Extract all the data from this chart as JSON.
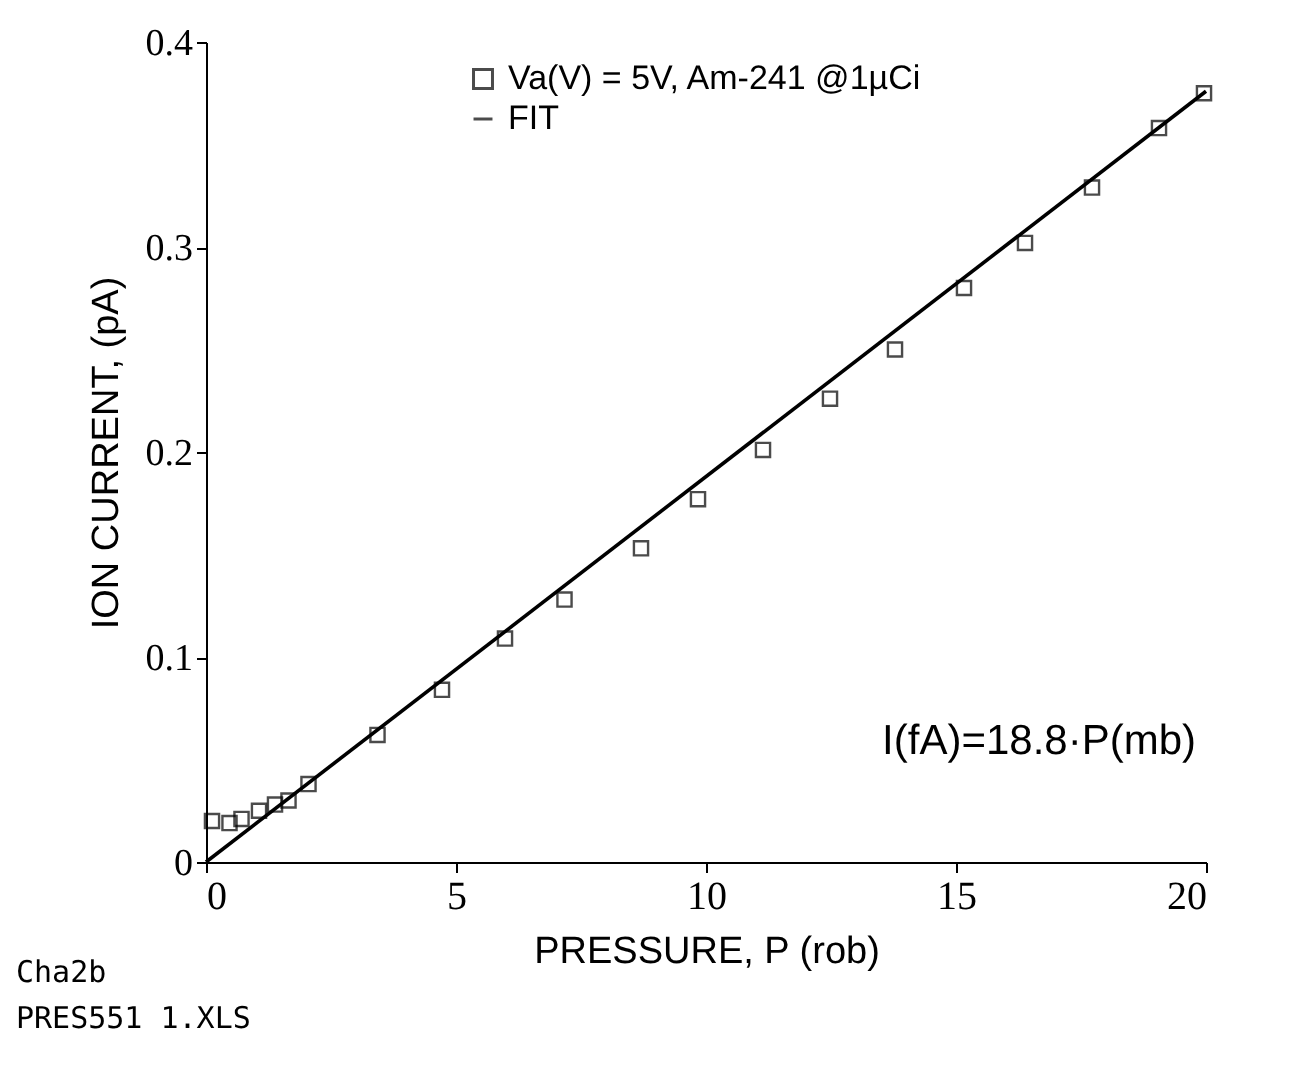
{
  "chart_data": {
    "type": "scatter",
    "xlabel": "PRESSURE,  P  (rob)",
    "ylabel": "ION CURRENT, (pA)",
    "xlim": [
      0,
      20
    ],
    "xticks": [
      0,
      5,
      10,
      15,
      20
    ],
    "ylim": [
      0,
      0.4
    ],
    "yticks": [
      0,
      0.1,
      0.2,
      0.3,
      0.4
    ],
    "grid": false,
    "legend": "top",
    "series": [
      {
        "name": "Va(V) = 5V, Am-241 @1µCi",
        "marker": "square",
        "color": "#000000",
        "x": [
          0.12,
          0.47,
          0.71,
          1.06,
          1.38,
          1.65,
          2.05,
          3.43,
          4.72,
          5.98,
          7.17,
          8.7,
          9.84,
          11.14,
          12.48,
          13.78,
          15.16,
          16.38,
          17.72,
          19.06,
          19.96
        ],
        "values": [
          0.02,
          0.019,
          0.021,
          0.025,
          0.028,
          0.03,
          0.038,
          0.062,
          0.084,
          0.109,
          0.128,
          0.153,
          0.177,
          0.201,
          0.226,
          0.25,
          0.28,
          0.302,
          0.329,
          0.358,
          0.375
        ]
      },
      {
        "name": "FIT",
        "type": "line",
        "line_style": "solid",
        "color": "#000000",
        "x": [
          0,
          20
        ],
        "values": [
          0,
          0.376
        ]
      }
    ],
    "annotations": [
      "I(fA)=18.8·P(mb)",
      "Cha2b",
      "PRES551 1.XLS"
    ]
  }
}
